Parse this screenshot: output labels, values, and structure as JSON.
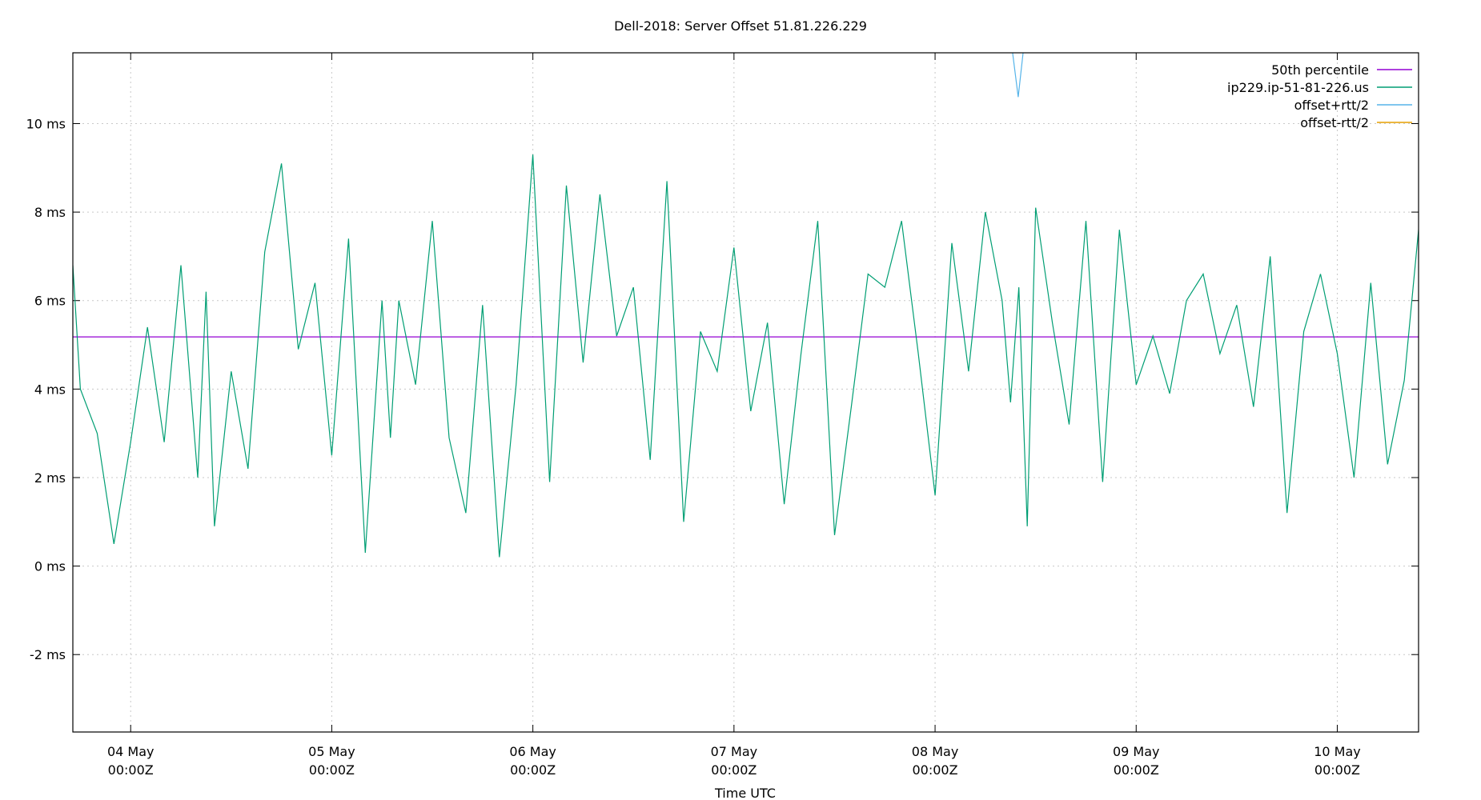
{
  "chart_data": {
    "type": "line",
    "title": "Dell-2018: Server Offset 51.81.226.229",
    "xlabel": "Time UTC",
    "ylabel": "",
    "y_unit": "ms",
    "ylim": [
      -3.75,
      11.6
    ],
    "yticks": [
      {
        "value": -2,
        "label": "-2 ms"
      },
      {
        "value": 0,
        "label": "0 ms"
      },
      {
        "value": 2,
        "label": "2 ms"
      },
      {
        "value": 4,
        "label": "4 ms"
      },
      {
        "value": 6,
        "label": "6 ms"
      },
      {
        "value": 8,
        "label": "8 ms"
      },
      {
        "value": 10,
        "label": "10 ms"
      }
    ],
    "xlim": [
      "2020-05-03T17:06Z",
      "2020-05-10T09:42Z"
    ],
    "xticks": [
      {
        "date": "2020-05-04T00:00Z",
        "label1": "04 May",
        "label2": "00:00Z"
      },
      {
        "date": "2020-05-05T00:00Z",
        "label1": "05 May",
        "label2": "00:00Z"
      },
      {
        "date": "2020-05-06T00:00Z",
        "label1": "06 May",
        "label2": "00:00Z"
      },
      {
        "date": "2020-05-07T00:00Z",
        "label1": "07 May",
        "label2": "00:00Z"
      },
      {
        "date": "2020-05-08T00:00Z",
        "label1": "08 May",
        "label2": "00:00Z"
      },
      {
        "date": "2020-05-09T00:00Z",
        "label1": "09 May",
        "label2": "00:00Z"
      },
      {
        "date": "2020-05-10T00:00Z",
        "label1": "10 May",
        "label2": "00:00Z"
      }
    ],
    "grid": true,
    "legend_position": "top-right",
    "series": [
      {
        "name": "50th percentile",
        "color": "#9400d3",
        "x": [
          "2020-05-03T17:06Z",
          "2020-05-10T09:42Z"
        ],
        "values": [
          5.18,
          5.18
        ]
      },
      {
        "name": "ip229.ip-51-81-226.us",
        "color": "#009e73",
        "x": [
          "2020-05-03T17:06Z",
          "2020-05-03T18:00Z",
          "2020-05-03T20:00Z",
          "2020-05-03T22:00Z",
          "2020-05-04T00:00Z",
          "2020-05-04T02:00Z",
          "2020-05-04T04:00Z",
          "2020-05-04T06:00Z",
          "2020-05-04T08:00Z",
          "2020-05-04T09:00Z",
          "2020-05-04T10:00Z",
          "2020-05-04T12:00Z",
          "2020-05-04T14:00Z",
          "2020-05-04T16:00Z",
          "2020-05-04T18:00Z",
          "2020-05-04T20:00Z",
          "2020-05-04T22:00Z",
          "2020-05-05T00:00Z",
          "2020-05-05T02:00Z",
          "2020-05-05T04:00Z",
          "2020-05-05T06:00Z",
          "2020-05-05T07:00Z",
          "2020-05-05T08:00Z",
          "2020-05-05T10:00Z",
          "2020-05-05T12:00Z",
          "2020-05-05T14:00Z",
          "2020-05-05T16:00Z",
          "2020-05-05T18:00Z",
          "2020-05-05T20:00Z",
          "2020-05-05T22:00Z",
          "2020-05-06T00:00Z",
          "2020-05-06T02:00Z",
          "2020-05-06T04:00Z",
          "2020-05-06T06:00Z",
          "2020-05-06T08:00Z",
          "2020-05-06T10:00Z",
          "2020-05-06T12:00Z",
          "2020-05-06T14:00Z",
          "2020-05-06T16:00Z",
          "2020-05-06T18:00Z",
          "2020-05-06T20:00Z",
          "2020-05-06T22:00Z",
          "2020-05-07T00:00Z",
          "2020-05-07T02:00Z",
          "2020-05-07T04:00Z",
          "2020-05-07T06:00Z",
          "2020-05-07T08:00Z",
          "2020-05-07T10:00Z",
          "2020-05-07T12:00Z",
          "2020-05-07T14:00Z",
          "2020-05-07T16:00Z",
          "2020-05-07T18:00Z",
          "2020-05-07T20:00Z",
          "2020-05-07T22:00Z",
          "2020-05-08T00:00Z",
          "2020-05-08T02:00Z",
          "2020-05-08T04:00Z",
          "2020-05-08T06:00Z",
          "2020-05-08T08:00Z",
          "2020-05-08T09:00Z",
          "2020-05-08T10:00Z",
          "2020-05-08T11:00Z",
          "2020-05-08T12:00Z",
          "2020-05-08T14:00Z",
          "2020-05-08T16:00Z",
          "2020-05-08T18:00Z",
          "2020-05-08T20:00Z",
          "2020-05-08T22:00Z",
          "2020-05-09T00:00Z",
          "2020-05-09T02:00Z",
          "2020-05-09T04:00Z",
          "2020-05-09T06:00Z",
          "2020-05-09T08:00Z",
          "2020-05-09T10:00Z",
          "2020-05-09T12:00Z",
          "2020-05-09T14:00Z",
          "2020-05-09T16:00Z",
          "2020-05-09T18:00Z",
          "2020-05-09T20:00Z",
          "2020-05-09T22:00Z",
          "2020-05-10T00:00Z",
          "2020-05-10T02:00Z",
          "2020-05-10T04:00Z",
          "2020-05-10T06:00Z",
          "2020-05-10T08:00Z",
          "2020-05-10T09:42Z"
        ],
        "values": [
          6.8,
          4.0,
          3.0,
          0.5,
          2.8,
          5.4,
          2.8,
          6.8,
          2.0,
          6.2,
          0.9,
          4.4,
          2.2,
          7.1,
          9.1,
          4.9,
          6.4,
          2.5,
          7.4,
          0.3,
          6.0,
          2.9,
          6.0,
          4.1,
          7.8,
          2.9,
          1.2,
          5.9,
          0.2,
          4.1,
          9.3,
          1.9,
          8.6,
          4.6,
          8.4,
          5.2,
          6.3,
          2.4,
          8.7,
          1.0,
          5.3,
          4.4,
          7.2,
          3.5,
          5.5,
          1.4,
          4.8,
          7.8,
          0.7,
          3.6,
          6.6,
          6.3,
          7.8,
          4.8,
          1.6,
          7.3,
          4.4,
          8.0,
          6.0,
          3.7,
          6.3,
          0.9,
          8.1,
          5.5,
          3.2,
          7.8,
          1.9,
          7.6,
          4.1,
          5.2,
          3.9,
          6.0,
          6.6,
          4.8,
          5.9,
          3.6,
          7.0,
          1.2,
          5.3,
          6.6,
          4.8,
          2.0,
          6.4,
          2.3,
          4.2,
          7.6
        ]
      },
      {
        "name": "offset+rtt/2",
        "color": "#56b4e9",
        "x": [
          "2020-05-08T09:15Z",
          "2020-05-08T09:55Z",
          "2020-05-08T10:30Z"
        ],
        "values": [
          11.6,
          10.6,
          11.6
        ]
      },
      {
        "name": "offset-rtt/2",
        "color": "#e69f00",
        "x": [],
        "values": []
      }
    ]
  }
}
